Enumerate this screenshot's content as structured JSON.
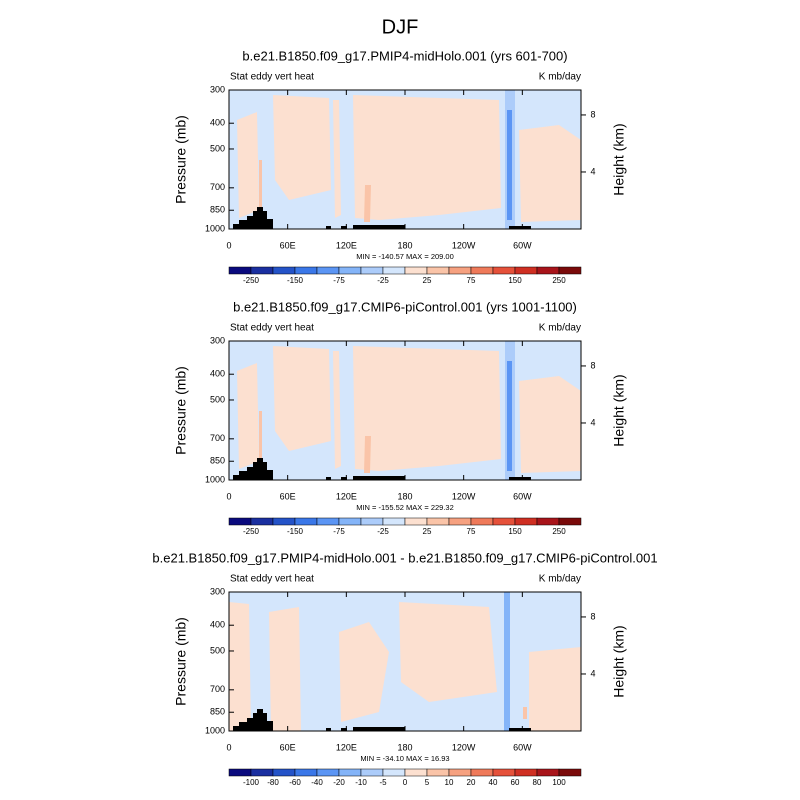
{
  "title": "DJF",
  "chart_data": [
    {
      "type": "contour",
      "title": "b.e21.B1850.f09_g17.PMIP4-midHolo.001 (yrs 601-700)",
      "left_label": "Stat eddy vert heat",
      "right_label": "K mb/day",
      "ylabel": "Pressure (mb)",
      "y2label": "Height (km)",
      "xlim": [
        0,
        360
      ],
      "xticks": [
        0,
        {
          "value": 60,
          "label": "60E"
        },
        {
          "value": 120,
          "label": "120E"
        },
        180,
        {
          "value": 240,
          "label": "120W"
        },
        {
          "value": 300,
          "label": "60W"
        }
      ],
      "ylim": [
        1000,
        300
      ],
      "yscale": "log",
      "yticks": [
        300,
        400,
        500,
        700,
        850,
        1000
      ],
      "y2lim": [
        0,
        9.75
      ],
      "y2ticks": [
        4,
        8
      ],
      "min_max": "MIN = -140.57  MAX = 209.00",
      "colorbar": {
        "colors": [
          "#0a0a7e",
          "#1a2fa0",
          "#2453c8",
          "#3a77e8",
          "#5b95f4",
          "#84b4f8",
          "#acccfa",
          "#d4e6fc",
          "#fce0d0",
          "#fac4a8",
          "#f6a180",
          "#ef7a5a",
          "#e5513a",
          "#cf2f22",
          "#a8141a",
          "#7a0a0a"
        ],
        "labels": [
          -250,
          -150,
          -75,
          -25,
          25,
          75,
          150,
          250
        ]
      }
    },
    {
      "type": "contour",
      "title": "b.e21.B1850.f09_g17.CMIP6-piControl.001 (yrs 1001-1100)",
      "left_label": "Stat eddy vert heat",
      "right_label": "K mb/day",
      "ylabel": "Pressure (mb)",
      "y2label": "Height (km)",
      "xlim": [
        0,
        360
      ],
      "xticks": [
        0,
        {
          "value": 60,
          "label": "60E"
        },
        {
          "value": 120,
          "label": "120E"
        },
        180,
        {
          "value": 240,
          "label": "120W"
        },
        {
          "value": 300,
          "label": "60W"
        }
      ],
      "ylim": [
        1000,
        300
      ],
      "yscale": "log",
      "yticks": [
        300,
        400,
        500,
        700,
        850,
        1000
      ],
      "y2lim": [
        0,
        9.75
      ],
      "y2ticks": [
        4,
        8
      ],
      "min_max": "MIN = -155.52  MAX = 229.32",
      "colorbar": {
        "colors": [
          "#0a0a7e",
          "#1a2fa0",
          "#2453c8",
          "#3a77e8",
          "#5b95f4",
          "#84b4f8",
          "#acccfa",
          "#d4e6fc",
          "#fce0d0",
          "#fac4a8",
          "#f6a180",
          "#ef7a5a",
          "#e5513a",
          "#cf2f22",
          "#a8141a",
          "#7a0a0a"
        ],
        "labels": [
          -250,
          -150,
          -75,
          -25,
          25,
          75,
          150,
          250
        ]
      }
    },
    {
      "type": "contour",
      "title": "b.e21.B1850.f09_g17.PMIP4-midHolo.001 - b.e21.B1850.f09_g17.CMIP6-piControl.001",
      "left_label": "Stat eddy vert heat",
      "right_label": "K mb/day",
      "ylabel": "Pressure (mb)",
      "y2label": "Height (km)",
      "xlim": [
        0,
        360
      ],
      "xticks": [
        0,
        {
          "value": 60,
          "label": "60E"
        },
        {
          "value": 120,
          "label": "120E"
        },
        180,
        {
          "value": 240,
          "label": "120W"
        },
        {
          "value": 300,
          "label": "60W"
        }
      ],
      "ylim": [
        1000,
        300
      ],
      "yscale": "log",
      "yticks": [
        300,
        400,
        500,
        700,
        850,
        1000
      ],
      "y2lim": [
        0,
        9.75
      ],
      "y2ticks": [
        4,
        8
      ],
      "min_max": "MIN = -34.10  MAX = 16.93",
      "colorbar": {
        "colors": [
          "#0a0a7e",
          "#1a2fa0",
          "#2453c8",
          "#3a77e8",
          "#5b95f4",
          "#84b4f8",
          "#acccfa",
          "#d4e6fc",
          "#fce0d0",
          "#fac4a8",
          "#f6a180",
          "#ef7a5a",
          "#e5513a",
          "#cf2f22",
          "#a8141a",
          "#7a0a0a"
        ],
        "labels": [
          -100,
          -80,
          -60,
          -40,
          -20,
          -10,
          -5,
          0,
          5,
          10,
          20,
          40,
          60,
          80,
          100
        ]
      }
    }
  ]
}
